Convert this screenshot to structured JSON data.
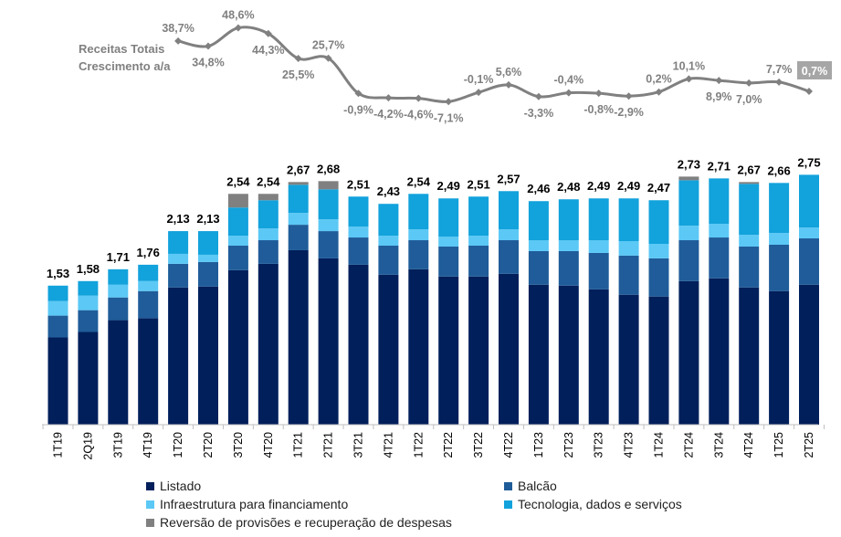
{
  "growth_label": {
    "line1": "Receitas Totais",
    "line2": "Crescimento a/a"
  },
  "legend": [
    {
      "key": "listado",
      "label": "Listado",
      "color": "#001F5B"
    },
    {
      "key": "balcao",
      "label": "Balcão",
      "color": "#1F5C99"
    },
    {
      "key": "infra",
      "label": "Infraestrutura para financiamento",
      "color": "#5BC8F5"
    },
    {
      "key": "tec",
      "label": "Tecnologia, dados e serviços",
      "color": "#12A2DC"
    },
    {
      "key": "rev",
      "label": "Reversão de provisões e recuperação de despesas",
      "color": "#808080"
    }
  ],
  "chart_data": {
    "type": "bar",
    "stacked": true,
    "categories": [
      "1T19",
      "2Q19",
      "3T19",
      "4T19",
      "1T20",
      "2T20",
      "3T20",
      "4T20",
      "1T21",
      "2T21",
      "3T21",
      "4T21",
      "1T22",
      "2T22",
      "3T22",
      "4T22",
      "1T23",
      "2T23",
      "3T23",
      "4T23",
      "1T24",
      "2T24",
      "3T24",
      "4T24",
      "1T25",
      "2T25"
    ],
    "totals": [
      "1,53",
      "1,58",
      "1,71",
      "1,76",
      "2,13",
      "2,13",
      "2,54",
      "2,54",
      "2,67",
      "2,68",
      "2,51",
      "2,43",
      "2,54",
      "2,49",
      "2,51",
      "2,57",
      "2,46",
      "2,48",
      "2,49",
      "2,49",
      "2,47",
      "2,73",
      "2,71",
      "2,67",
      "2,66",
      "2,75"
    ],
    "series": [
      {
        "name": "Listado",
        "key": "listado",
        "color": "#001F5B",
        "values": [
          0.96,
          1.02,
          1.15,
          1.17,
          1.51,
          1.52,
          1.7,
          1.77,
          1.92,
          1.83,
          1.76,
          1.65,
          1.71,
          1.63,
          1.63,
          1.66,
          1.54,
          1.53,
          1.49,
          1.43,
          1.41,
          1.58,
          1.61,
          1.51,
          1.47,
          1.54
        ]
      },
      {
        "name": "Balcão",
        "key": "balcao",
        "color": "#1F5C99",
        "values": [
          0.24,
          0.24,
          0.25,
          0.3,
          0.26,
          0.27,
          0.27,
          0.26,
          0.28,
          0.3,
          0.3,
          0.32,
          0.32,
          0.33,
          0.34,
          0.37,
          0.37,
          0.38,
          0.4,
          0.43,
          0.42,
          0.45,
          0.45,
          0.45,
          0.51,
          0.51
        ]
      },
      {
        "name": "Infraestrutura para financiamento",
        "key": "infra",
        "color": "#5BC8F5",
        "values": [
          0.16,
          0.16,
          0.14,
          0.11,
          0.11,
          0.08,
          0.11,
          0.13,
          0.13,
          0.13,
          0.12,
          0.11,
          0.12,
          0.11,
          0.11,
          0.12,
          0.12,
          0.12,
          0.14,
          0.16,
          0.16,
          0.16,
          0.15,
          0.13,
          0.13,
          0.12
        ]
      },
      {
        "name": "Tecnologia, dados e serviços",
        "key": "tec",
        "color": "#12A2DC",
        "values": [
          0.17,
          0.16,
          0.17,
          0.18,
          0.25,
          0.26,
          0.31,
          0.31,
          0.31,
          0.33,
          0.33,
          0.35,
          0.39,
          0.42,
          0.43,
          0.42,
          0.43,
          0.45,
          0.46,
          0.47,
          0.48,
          0.5,
          0.5,
          0.56,
          0.55,
          0.58
        ]
      },
      {
        "name": "Reversão de provisões e recuperação de despesas",
        "key": "rev",
        "color": "#808080",
        "values": [
          0,
          0,
          0,
          0,
          0,
          0,
          0.15,
          0.07,
          0.03,
          0.09,
          0,
          0,
          0,
          0,
          0,
          0,
          0,
          0,
          0,
          0,
          0,
          0.04,
          0,
          0.02,
          0,
          0
        ]
      }
    ],
    "growth": {
      "name": "Receitas Totais Crescimento a/a",
      "values": [
        38.7,
        34.8,
        48.6,
        44.3,
        25.5,
        25.7,
        -0.9,
        -4.2,
        -4.6,
        -7.1,
        -0.1,
        5.6,
        -3.3,
        -0.4,
        -0.8,
        -2.9,
        0.2,
        10.1,
        8.9,
        7.0,
        7.7,
        0.7
      ],
      "labels": [
        "38,7%",
        "34,8%",
        "48,6%",
        "44,3%",
        "25,5%",
        "25,7%",
        "-0,9%",
        "-4,2%",
        "-4,6%",
        "-7,1%",
        "-0,1%",
        "5,6%",
        "-3,3%",
        "-0,4%",
        "-0,8%",
        "-2,9%",
        "0,2%",
        "10,1%",
        "8,9%",
        "7,0%",
        "7,7%",
        "0,7%"
      ],
      "starts_at_category": "1T20",
      "highlight_last": true
    },
    "ylim": [
      0,
      3.0
    ],
    "grid": false
  }
}
